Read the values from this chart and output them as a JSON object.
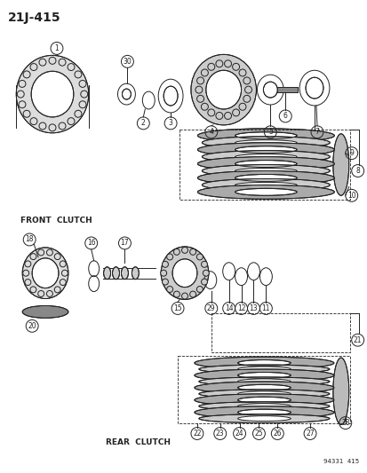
{
  "title": "21J-415",
  "subtitle_code": "94331  415",
  "front_clutch_label": "FRONT  CLUTCH",
  "rear_clutch_label": "REAR  CLUTCH",
  "bg_color": "#ffffff",
  "lc": "#222222"
}
